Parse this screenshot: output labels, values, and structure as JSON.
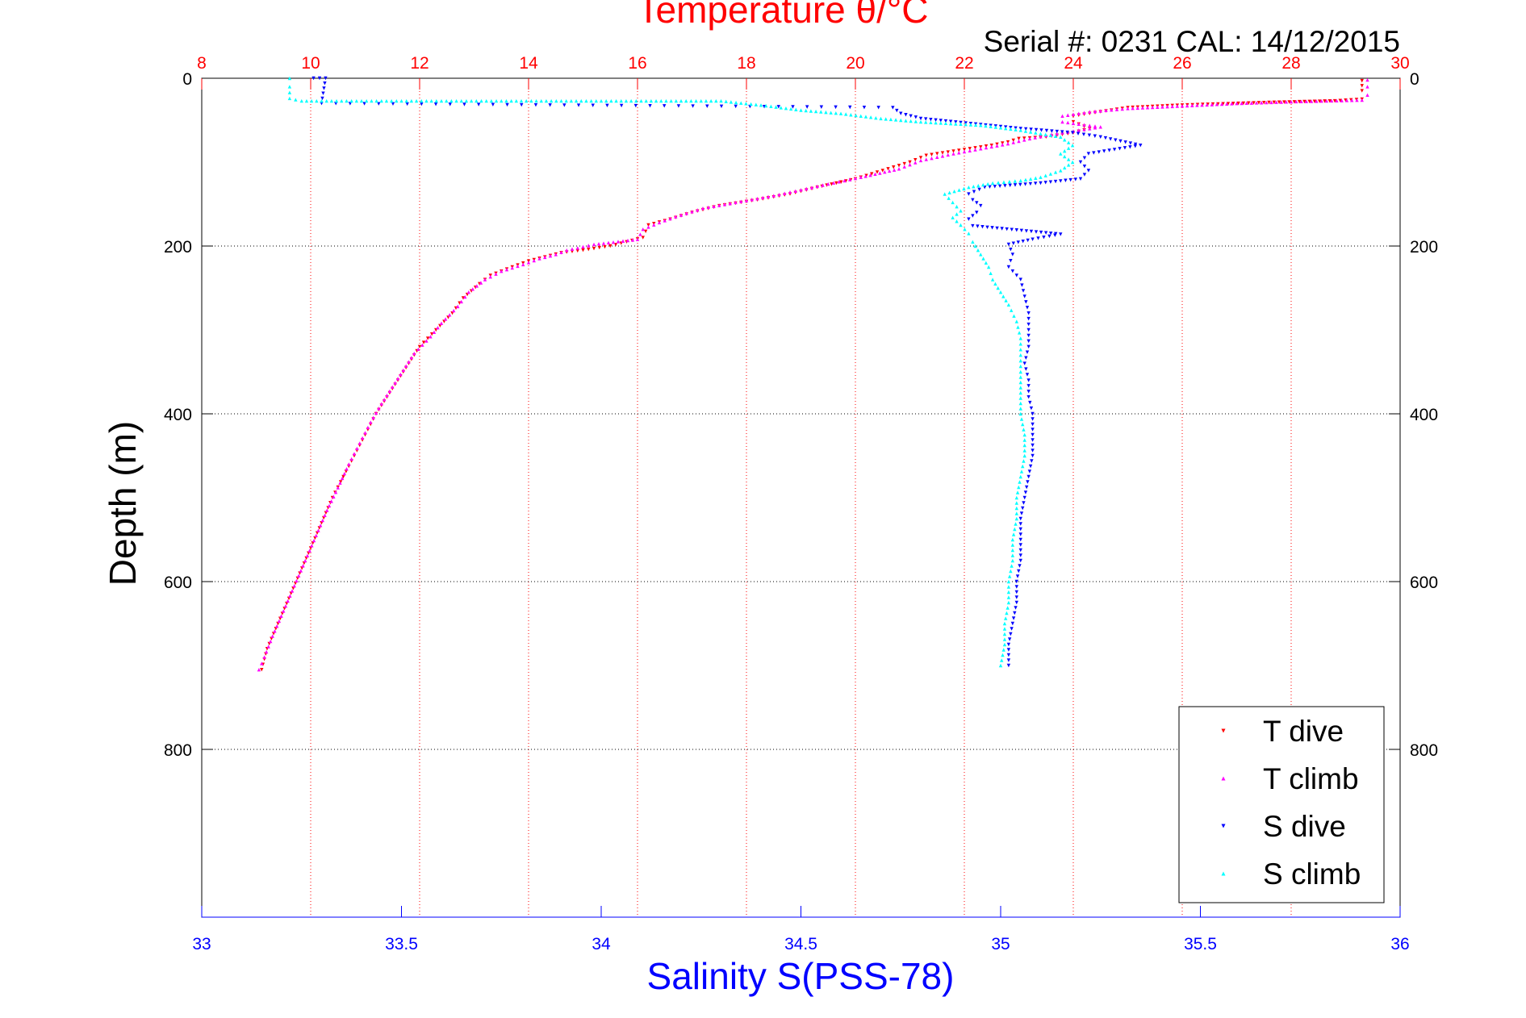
{
  "chart_data": {
    "type": "scatter",
    "title": "Temperature θ/°C",
    "subtitle": "Serial #: 0231  CAL: 14/12/2015",
    "xlabel_bottom": "Salinity S(PSS-78)",
    "xlabel_top": "Temperature θ/°C",
    "ylabel": "Depth (m)",
    "x_bottom_lim": [
      33,
      36
    ],
    "x_top_lim": [
      8,
      30
    ],
    "ylim": [
      0,
      1000
    ],
    "y_reversed": true,
    "x_bottom_ticks": [
      "33",
      "33.5",
      "34",
      "34.5",
      "35",
      "35.5",
      "36"
    ],
    "x_top_ticks": [
      "8",
      "10",
      "12",
      "14",
      "16",
      "18",
      "20",
      "22",
      "24",
      "26",
      "28",
      "30"
    ],
    "y_ticks": [
      "0",
      "200",
      "400",
      "600",
      "800"
    ],
    "grid": true,
    "legend_position": "bottom-right",
    "series": [
      {
        "name": "T dive",
        "axis": "top",
        "color": "#ff0000",
        "marker": "triangle-down",
        "points": [
          [
            29.3,
            3
          ],
          [
            29.3,
            15
          ],
          [
            29.3,
            25
          ],
          [
            28.8,
            27
          ],
          [
            27.5,
            29
          ],
          [
            26,
            32
          ],
          [
            25,
            35
          ],
          [
            24.5,
            40
          ],
          [
            24,
            45
          ],
          [
            24,
            52
          ],
          [
            24.3,
            60
          ],
          [
            24,
            65
          ],
          [
            23.5,
            70
          ],
          [
            23,
            72
          ],
          [
            22.8,
            76
          ],
          [
            22.5,
            80
          ],
          [
            22,
            85
          ],
          [
            21.3,
            92
          ],
          [
            21,
            100
          ],
          [
            20.5,
            110
          ],
          [
            20,
            120
          ],
          [
            19.3,
            130
          ],
          [
            18.8,
            138
          ],
          [
            18.2,
            145
          ],
          [
            17.5,
            152
          ],
          [
            17,
            160
          ],
          [
            16.6,
            168
          ],
          [
            16.2,
            175
          ],
          [
            16.1,
            190
          ],
          [
            15.5,
            200
          ],
          [
            15,
            205
          ],
          [
            14.6,
            208
          ],
          [
            14.3,
            213
          ],
          [
            14,
            218
          ],
          [
            13.7,
            225
          ],
          [
            13.3,
            235
          ],
          [
            13.1,
            245
          ],
          [
            12.8,
            262
          ],
          [
            12.6,
            280
          ],
          [
            12.3,
            300
          ],
          [
            12,
            320
          ],
          [
            11.8,
            340
          ],
          [
            11.6,
            360
          ],
          [
            11.4,
            380
          ],
          [
            11.2,
            400
          ],
          [
            11,
            425
          ],
          [
            10.8,
            450
          ],
          [
            10.6,
            475
          ],
          [
            10.4,
            500
          ],
          [
            10.2,
            530
          ],
          [
            10,
            560
          ],
          [
            9.8,
            590
          ],
          [
            9.6,
            620
          ],
          [
            9.4,
            650
          ],
          [
            9.2,
            680
          ],
          [
            9.1,
            705
          ]
        ]
      },
      {
        "name": "T climb",
        "axis": "top",
        "color": "#ff00ff",
        "marker": "triangle-up",
        "points": [
          [
            29.4,
            2
          ],
          [
            29.4,
            10
          ],
          [
            29.4,
            20
          ],
          [
            29.3,
            26
          ],
          [
            28,
            28
          ],
          [
            27,
            30
          ],
          [
            26,
            33
          ],
          [
            25,
            36
          ],
          [
            24.3,
            40
          ],
          [
            23.8,
            45
          ],
          [
            23.8,
            52
          ],
          [
            24.5,
            58
          ],
          [
            24,
            63
          ],
          [
            23.6,
            67
          ],
          [
            23.2,
            72
          ],
          [
            22.8,
            78
          ],
          [
            22.3,
            84
          ],
          [
            21.8,
            90
          ],
          [
            21.2,
            98
          ],
          [
            20.8,
            108
          ],
          [
            20.1,
            118
          ],
          [
            19.5,
            126
          ],
          [
            19,
            133
          ],
          [
            18.5,
            140
          ],
          [
            17.8,
            148
          ],
          [
            17.2,
            155
          ],
          [
            16.7,
            165
          ],
          [
            16.4,
            172
          ],
          [
            16.1,
            180
          ],
          [
            16,
            192
          ],
          [
            15.2,
            198
          ],
          [
            14.7,
            205
          ],
          [
            14.5,
            210
          ],
          [
            14.2,
            215
          ],
          [
            13.9,
            222
          ],
          [
            13.5,
            230
          ],
          [
            13.2,
            240
          ],
          [
            12.9,
            255
          ],
          [
            12.7,
            272
          ],
          [
            12.4,
            292
          ],
          [
            12.2,
            308
          ],
          [
            11.9,
            328
          ],
          [
            11.7,
            348
          ],
          [
            11.5,
            368
          ],
          [
            11.3,
            388
          ],
          [
            11.1,
            410
          ],
          [
            10.9,
            435
          ],
          [
            10.7,
            460
          ],
          [
            10.5,
            488
          ],
          [
            10.3,
            515
          ],
          [
            10.1,
            545
          ],
          [
            9.9,
            575
          ],
          [
            9.7,
            605
          ],
          [
            9.5,
            635
          ],
          [
            9.3,
            665
          ],
          [
            9.15,
            690
          ],
          [
            9.05,
            705
          ]
        ]
      },
      {
        "name": "S dive",
        "axis": "bottom",
        "color": "#0000ff",
        "marker": "triangle-down",
        "points": [
          [
            33.28,
            0
          ],
          [
            33.31,
            0
          ],
          [
            33.3,
            30
          ],
          [
            34.73,
            35
          ],
          [
            34.75,
            42
          ],
          [
            34.8,
            48
          ],
          [
            35.05,
            60
          ],
          [
            35.18,
            65
          ],
          [
            35.25,
            70
          ],
          [
            35.3,
            75
          ],
          [
            35.35,
            80
          ],
          [
            35.22,
            90
          ],
          [
            35.2,
            100
          ],
          [
            35.22,
            110
          ],
          [
            35.2,
            120
          ],
          [
            35.1,
            125
          ],
          [
            34.96,
            130
          ],
          [
            34.92,
            138
          ],
          [
            34.93,
            145
          ],
          [
            34.95,
            152
          ],
          [
            34.94,
            160
          ],
          [
            34.92,
            168
          ],
          [
            34.93,
            176
          ],
          [
            35.15,
            186
          ],
          [
            35.08,
            192
          ],
          [
            35.02,
            198
          ],
          [
            35.03,
            210
          ],
          [
            35.02,
            225
          ],
          [
            35.05,
            240
          ],
          [
            35.06,
            260
          ],
          [
            35.07,
            280
          ],
          [
            35.07,
            300
          ],
          [
            35.07,
            320
          ],
          [
            35.06,
            340
          ],
          [
            35.07,
            360
          ],
          [
            35.07,
            380
          ],
          [
            35.08,
            400
          ],
          [
            35.08,
            425
          ],
          [
            35.08,
            450
          ],
          [
            35.07,
            475
          ],
          [
            35.06,
            500
          ],
          [
            35.05,
            525
          ],
          [
            35.05,
            550
          ],
          [
            35.05,
            575
          ],
          [
            35.04,
            600
          ],
          [
            35.04,
            625
          ],
          [
            35.03,
            650
          ],
          [
            35.02,
            675
          ],
          [
            35.02,
            700
          ]
        ]
      },
      {
        "name": "S climb",
        "axis": "bottom",
        "color": "#00ffff",
        "marker": "triangle-up",
        "points": [
          [
            33.22,
            0
          ],
          [
            33.22,
            10
          ],
          [
            33.22,
            24
          ],
          [
            33.25,
            27
          ],
          [
            33.4,
            27
          ],
          [
            33.5,
            27
          ],
          [
            33.7,
            27
          ],
          [
            34,
            27
          ],
          [
            34.3,
            27
          ],
          [
            34.4,
            32
          ],
          [
            34.5,
            38
          ],
          [
            34.6,
            42
          ],
          [
            34.7,
            48
          ],
          [
            34.8,
            52
          ],
          [
            34.95,
            56
          ],
          [
            35.05,
            62
          ],
          [
            35.15,
            70
          ],
          [
            35.18,
            80
          ],
          [
            35.15,
            90
          ],
          [
            35.18,
            100
          ],
          [
            35.15,
            110
          ],
          [
            35.1,
            118
          ],
          [
            35.05,
            122
          ],
          [
            34.98,
            125
          ],
          [
            34.92,
            130
          ],
          [
            34.86,
            138
          ],
          [
            34.88,
            148
          ],
          [
            34.9,
            158
          ],
          [
            34.88,
            166
          ],
          [
            34.9,
            175
          ],
          [
            34.92,
            185
          ],
          [
            34.93,
            195
          ],
          [
            34.95,
            210
          ],
          [
            34.97,
            225
          ],
          [
            34.98,
            240
          ],
          [
            35,
            255
          ],
          [
            35.02,
            270
          ],
          [
            35.04,
            290
          ],
          [
            35.05,
            310
          ],
          [
            35.05,
            330
          ],
          [
            35.05,
            350
          ],
          [
            35.05,
            375
          ],
          [
            35.05,
            400
          ],
          [
            35.06,
            425
          ],
          [
            35.06,
            450
          ],
          [
            35.05,
            475
          ],
          [
            35.04,
            500
          ],
          [
            35.04,
            525
          ],
          [
            35.03,
            550
          ],
          [
            35.03,
            575
          ],
          [
            35.02,
            600
          ],
          [
            35.02,
            625
          ],
          [
            35.01,
            650
          ],
          [
            35.01,
            675
          ],
          [
            35,
            700
          ]
        ]
      }
    ]
  }
}
